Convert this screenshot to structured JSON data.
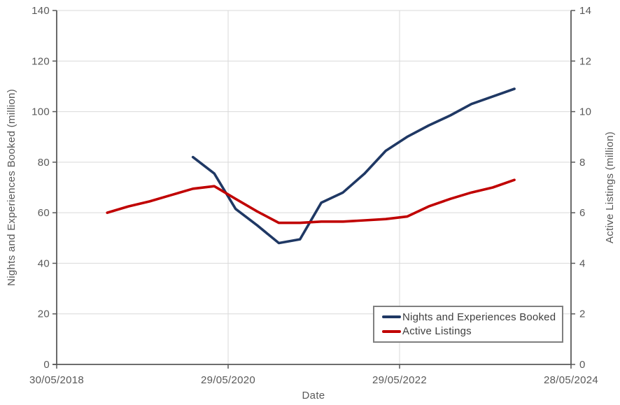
{
  "chart_data": {
    "type": "line",
    "title": "",
    "grid": true,
    "legend_position": "inside-bottom-right",
    "x_axis": {
      "label": "Date",
      "tick_labels": [
        "30/05/2018",
        "29/05/2020",
        "29/05/2022",
        "28/05/2024"
      ]
    },
    "y_left": {
      "label": "Nights and Experiences Booked (million)",
      "min": 0,
      "max": 140,
      "ticks": [
        0,
        20,
        40,
        60,
        80,
        100,
        120,
        140
      ]
    },
    "y_right": {
      "label": "Active Listings (million)",
      "min": 0,
      "max": 14,
      "ticks": [
        0,
        2,
        4,
        6,
        8,
        10,
        12,
        14
      ]
    },
    "series": [
      {
        "name": "Nights and Experiences Booked",
        "axis": "left",
        "color": "#1f3864",
        "dates": [
          "31/12/2019",
          "31/03/2020",
          "30/06/2020",
          "30/09/2020",
          "31/12/2020",
          "31/03/2021",
          "30/06/2021",
          "30/09/2021",
          "31/12/2021",
          "31/03/2022",
          "30/06/2022",
          "30/09/2022",
          "31/12/2022",
          "31/03/2023",
          "30/06/2023",
          "30/09/2023"
        ],
        "values": [
          82,
          75.5,
          61.5,
          55,
          48,
          49.5,
          64,
          68,
          75.5,
          84.5,
          90,
          94.5,
          98.5,
          103,
          106,
          109
        ]
      },
      {
        "name": "Active Listings",
        "axis": "right",
        "color": "#c00000",
        "dates": [
          "31/12/2018",
          "31/03/2019",
          "30/06/2019",
          "30/09/2019",
          "31/12/2019",
          "31/03/2020",
          "30/06/2020",
          "30/09/2020",
          "31/12/2020",
          "31/03/2021",
          "30/06/2021",
          "30/09/2021",
          "31/12/2021",
          "31/03/2022",
          "30/06/2022",
          "30/09/2022",
          "31/12/2022",
          "31/03/2023",
          "30/06/2023",
          "30/09/2023"
        ],
        "values": [
          6.0,
          6.25,
          6.45,
          6.7,
          6.95,
          7.05,
          6.55,
          6.05,
          5.6,
          5.6,
          5.65,
          5.65,
          5.7,
          5.75,
          5.85,
          6.25,
          6.55,
          6.8,
          7.0,
          7.3
        ]
      }
    ],
    "colors": {
      "gridline": "#d9d9d9",
      "axis": "#595959",
      "tick_text": "#595959",
      "legend_border": "#7f7f7f",
      "legend_text": "#404040"
    }
  }
}
